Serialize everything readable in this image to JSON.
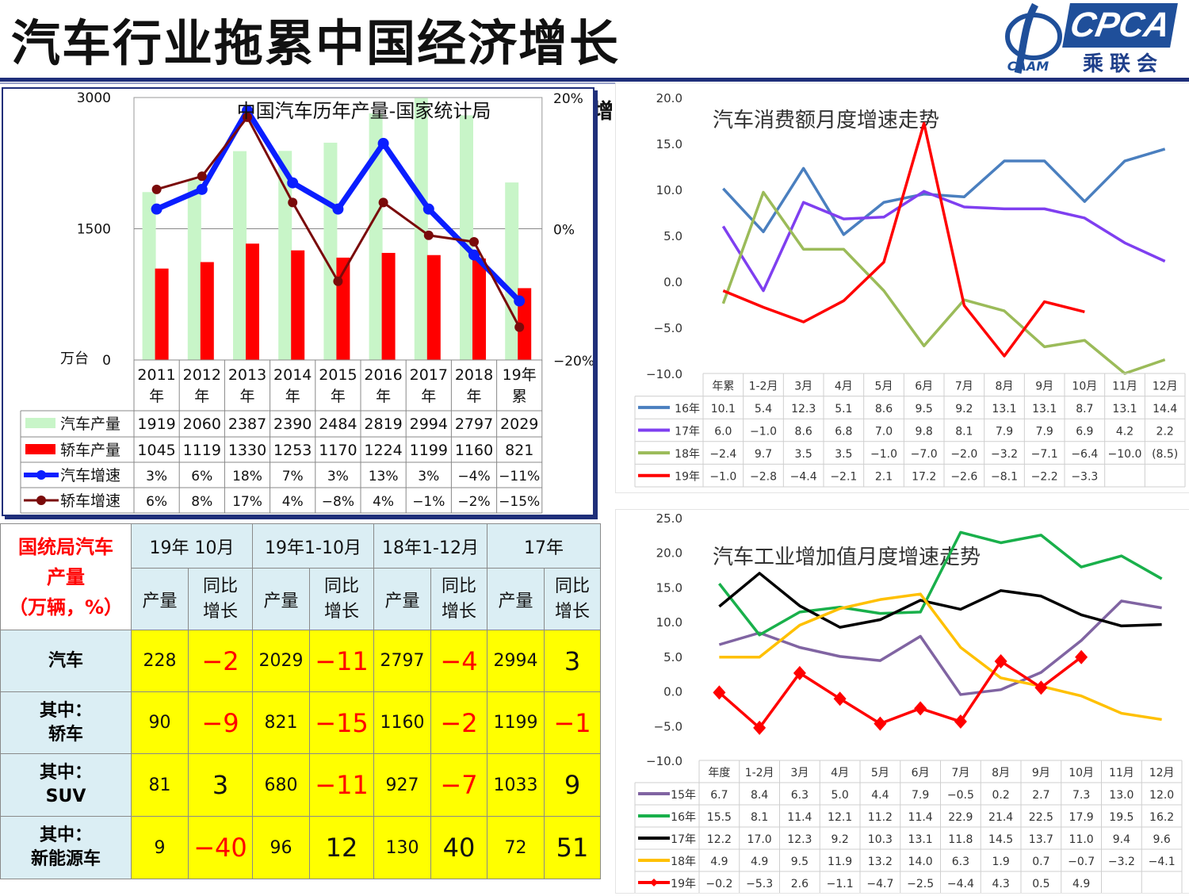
{
  "page_title": "汽车行业拖累中国经济增长",
  "logos": {
    "cpca": "CPCA",
    "cpca_sub": "乘联会",
    "caam": "CAAM"
  },
  "hidden_stub": "增",
  "colors": {
    "title_rule": "#1f2f7a",
    "table_header": "#dbeef4",
    "table_cell": "#ffff00",
    "negative_text": "#ff0000"
  },
  "chart_data": [
    {
      "type": "bar",
      "title": "中国汽车历年产量-国家统计局",
      "categories": [
        [
          "2011",
          "年"
        ],
        [
          "2012",
          "年"
        ],
        [
          "2013",
          "年"
        ],
        [
          "2014",
          "年"
        ],
        [
          "2015",
          "年"
        ],
        [
          "2016",
          "年"
        ],
        [
          "2017",
          "年"
        ],
        [
          "2018",
          "年"
        ],
        [
          "19年",
          "累"
        ]
      ],
      "y_unit": "万台",
      "ylim": [
        0,
        3000
      ],
      "y_ticks": [
        "0",
        "1500",
        "3000"
      ],
      "y2lim": [
        -20,
        20
      ],
      "y2_ticks": [
        "-20%",
        "0%",
        "20%"
      ],
      "series": [
        {
          "name": "汽车产量",
          "kind": "bar",
          "color": "#c8f5c8",
          "values": [
            1919,
            2060,
            2387,
            2390,
            2484,
            2819,
            2994,
            2797,
            2029
          ],
          "labels": [
            "1919",
            "2060",
            "2387",
            "2390",
            "2484",
            "2819",
            "2994",
            "2797",
            "2029"
          ]
        },
        {
          "name": "轿车产量",
          "kind": "bar",
          "color": "#ff0000",
          "values": [
            1045,
            1119,
            1330,
            1253,
            1170,
            1224,
            1199,
            1160,
            821
          ],
          "labels": [
            "1045",
            "1119",
            "1330",
            "1253",
            "1170",
            "1224",
            "1199",
            "1160",
            "821"
          ]
        },
        {
          "name": "汽车增速",
          "kind": "line",
          "axis": "y2",
          "color": "#0a1eff",
          "values": [
            3,
            6,
            18,
            7,
            3,
            13,
            3,
            -4,
            -11
          ],
          "labels": [
            "3%",
            "6%",
            "18%",
            "7%",
            "3%",
            "13%",
            "3%",
            "-4%",
            "-11%"
          ]
        },
        {
          "name": "轿车增速",
          "kind": "line",
          "axis": "y2",
          "color": "#7a0a0a",
          "values": [
            6,
            8,
            17,
            4,
            -8,
            4,
            -1,
            -2,
            -15
          ],
          "labels": [
            "6%",
            "8%",
            "17%",
            "4%",
            "-8%",
            "4%",
            "-1%",
            "-2%",
            "-15%"
          ]
        }
      ]
    },
    {
      "type": "line",
      "title": "汽车消费额月度增速走势",
      "categories": [
        "年累",
        "1-2月",
        "3月",
        "4月",
        "5月",
        "6月",
        "7月",
        "8月",
        "9月",
        "10月",
        "11月",
        "12月"
      ],
      "ylim": [
        -10,
        20
      ],
      "y_ticks": [
        "20.0",
        "15.0",
        "10.0",
        "5.0",
        "0.0",
        "-5.0",
        "-10.0"
      ],
      "series": [
        {
          "name": "16年",
          "color": "#4a7fbf",
          "values": [
            10.1,
            5.4,
            12.3,
            5.1,
            8.6,
            9.5,
            9.2,
            13.1,
            13.1,
            8.7,
            13.1,
            14.4
          ],
          "labels": [
            "10.1",
            "5.4",
            "12.3",
            "5.1",
            "8.6",
            "9.5",
            "9.2",
            "13.1",
            "13.1",
            "8.7",
            "13.1",
            "14.4"
          ]
        },
        {
          "name": "17年",
          "color": "#7f3ff0",
          "values": [
            6.0,
            -1.0,
            8.6,
            6.8,
            7.0,
            9.8,
            8.1,
            7.9,
            7.9,
            6.9,
            4.2,
            2.2
          ],
          "labels": [
            "6.0",
            "-1.0",
            "8.6",
            "6.8",
            "7.0",
            "9.8",
            "8.1",
            "7.9",
            "7.9",
            "6.9",
            "4.2",
            "2.2"
          ]
        },
        {
          "name": "18年",
          "color": "#9bbb59",
          "values": [
            -2.4,
            9.7,
            3.5,
            3.5,
            -1.0,
            -7.0,
            -2.0,
            -3.2,
            -7.1,
            -6.4,
            -10.0,
            -8.5
          ],
          "labels": [
            "-2.4",
            "9.7",
            "3.5",
            "3.5",
            "-1.0",
            "-7.0",
            "-2.0",
            "-3.2",
            "-7.1",
            "-6.4",
            "-10.0",
            "(8.5)"
          ]
        },
        {
          "name": "19年",
          "color": "#ff0000",
          "values": [
            -1.0,
            -2.8,
            -4.4,
            -2.1,
            2.1,
            17.2,
            -2.6,
            -8.1,
            -2.2,
            -3.3,
            null,
            null
          ],
          "labels": [
            "-1.0",
            "-2.8",
            "-4.4",
            "-2.1",
            "2.1",
            "17.2",
            "-2.6",
            "-8.1",
            "-2.2",
            "-3.3",
            "",
            ""
          ]
        }
      ]
    },
    {
      "type": "line",
      "title": "汽车工业增加值月度增速走势",
      "categories": [
        "年度",
        "1-2月",
        "3月",
        "4月",
        "5月",
        "6月",
        "7月",
        "8月",
        "9月",
        "10月",
        "11月",
        "12月"
      ],
      "ylim": [
        -10,
        25
      ],
      "y_ticks": [
        "25.0",
        "20.0",
        "15.0",
        "10.0",
        "5.0",
        "0.0",
        "-5.0",
        "-10.0"
      ],
      "series": [
        {
          "name": "15年",
          "color": "#8064a2",
          "values": [
            6.7,
            8.4,
            6.3,
            5.0,
            4.4,
            7.9,
            -0.5,
            0.2,
            2.7,
            7.3,
            13.0,
            12.0
          ],
          "labels": [
            "6.7",
            "8.4",
            "6.3",
            "5.0",
            "4.4",
            "7.9",
            "-0.5",
            "0.2",
            "2.7",
            "7.3",
            "13.0",
            "12.0"
          ]
        },
        {
          "name": "16年",
          "color": "#19b04b",
          "values": [
            15.5,
            8.1,
            11.4,
            12.1,
            11.2,
            11.4,
            22.9,
            21.4,
            22.5,
            17.9,
            19.5,
            16.2
          ],
          "labels": [
            "15.5",
            "8.1",
            "11.4",
            "12.1",
            "11.2",
            "11.4",
            "22.9",
            "21.4",
            "22.5",
            "17.9",
            "19.5",
            "16.2"
          ]
        },
        {
          "name": "17年",
          "color": "#000000",
          "values": [
            12.2,
            17.0,
            12.3,
            9.2,
            10.3,
            13.1,
            11.8,
            14.5,
            13.7,
            11.0,
            9.4,
            9.6
          ],
          "labels": [
            "12.2",
            "17.0",
            "12.3",
            "9.2",
            "10.3",
            "13.1",
            "11.8",
            "14.5",
            "13.7",
            "11.0",
            "9.4",
            "9.6"
          ]
        },
        {
          "name": "18年",
          "color": "#ffc000",
          "values": [
            4.9,
            4.9,
            9.5,
            11.9,
            13.2,
            14.0,
            6.3,
            1.9,
            0.7,
            -0.7,
            -3.2,
            -4.1
          ],
          "labels": [
            "4.9",
            "4.9",
            "9.5",
            "11.9",
            "13.2",
            "14.0",
            "6.3",
            "1.9",
            "0.7",
            "-0.7",
            "-3.2",
            "-4.1"
          ]
        },
        {
          "name": "19年",
          "color": "#ff0000",
          "marker": "diamond",
          "values": [
            -0.2,
            -5.3,
            2.6,
            -1.1,
            -4.7,
            -2.5,
            -4.4,
            4.3,
            0.5,
            4.9,
            null,
            null
          ],
          "labels": [
            "-0.2",
            "-5.3",
            "2.6",
            "-1.1",
            "-4.7",
            "-2.5",
            "-4.4",
            "4.3",
            "0.5",
            "4.9",
            "",
            ""
          ]
        }
      ]
    },
    {
      "type": "table",
      "corner": [
        "国统局汽车",
        "产量",
        "（万辆，%）"
      ],
      "periods": [
        "19年 10月",
        "19年1-10月",
        "18年1-12月",
        "17年"
      ],
      "sub_headers": {
        "qty": "产量",
        "yoy_1": "同比",
        "yoy_2": "增长"
      },
      "rows": [
        {
          "label": [
            "汽车"
          ],
          "cells": [
            "228",
            "-2",
            "2029",
            "-11",
            "2797",
            "-4",
            "2994",
            "3"
          ]
        },
        {
          "label": [
            "其中：",
            "轿车"
          ],
          "cells": [
            "90",
            "-9",
            "821",
            "-15",
            "1160",
            "-2",
            "1199",
            "-1"
          ]
        },
        {
          "label": [
            "其中：",
            "SUV"
          ],
          "cells": [
            "81",
            "3",
            "680",
            "-11",
            "927",
            "-7",
            "1033",
            "9"
          ]
        },
        {
          "label": [
            "其中：",
            "新能源车"
          ],
          "cells": [
            "9",
            "-40",
            "96",
            "12",
            "130",
            "40",
            "72",
            "51"
          ]
        }
      ]
    }
  ]
}
